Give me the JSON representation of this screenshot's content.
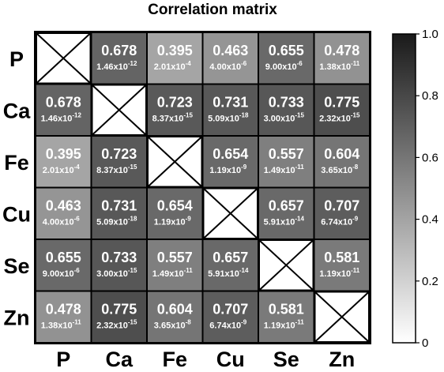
{
  "chart_data": {
    "type": "heatmap",
    "title": "Correlation matrix",
    "rows": [
      "P",
      "Ca",
      "Fe",
      "Cu",
      "Se",
      "Zn"
    ],
    "columns": [
      "P",
      "Ca",
      "Fe",
      "Cu",
      "Se",
      "Zn"
    ],
    "values": [
      [
        null,
        0.678,
        0.395,
        0.463,
        0.655,
        0.478
      ],
      [
        0.678,
        null,
        0.723,
        0.731,
        0.733,
        0.775
      ],
      [
        0.395,
        0.723,
        null,
        0.654,
        0.557,
        0.604
      ],
      [
        0.463,
        0.731,
        0.654,
        null,
        0.657,
        0.707
      ],
      [
        0.655,
        0.733,
        0.557,
        0.657,
        null,
        0.581
      ],
      [
        0.478,
        0.775,
        0.604,
        0.707,
        0.581,
        null
      ]
    ],
    "value_labels": [
      [
        null,
        "0.678",
        "0.395",
        "0.463",
        "0.655",
        "0.478"
      ],
      [
        "0.678",
        null,
        "0.723",
        "0.731",
        "0.733",
        "0.775"
      ],
      [
        "0.395",
        "0.723",
        null,
        "0.654",
        "0.557",
        "0.604"
      ],
      [
        "0.463",
        "0.731",
        "0.654",
        null,
        "0.657",
        "0.707"
      ],
      [
        "0.655",
        "0.733",
        "0.557",
        "0.657",
        null,
        "0.581"
      ],
      [
        "0.478",
        "0.775",
        "0.604",
        "0.707",
        "0.581",
        null
      ]
    ],
    "p_values": [
      [
        null,
        [
          "1.46x10",
          "-12"
        ],
        [
          "2.01x10",
          "-4"
        ],
        [
          "4.00x10",
          "-6"
        ],
        [
          "9.00x10",
          "-6"
        ],
        [
          "1.38x10",
          "-11"
        ]
      ],
      [
        [
          "1.46x10",
          "-12"
        ],
        null,
        [
          "8.37x10",
          "-15"
        ],
        [
          "5.09x10",
          "-18"
        ],
        [
          "3.00x10",
          "-15"
        ],
        [
          "2.32x10",
          "-15"
        ]
      ],
      [
        [
          "2.01x10",
          "-4"
        ],
        [
          "8.37x10",
          "-15"
        ],
        null,
        [
          "1.19x10",
          "-9"
        ],
        [
          "1.49x10",
          "-11"
        ],
        [
          "3.65x10",
          "-8"
        ]
      ],
      [
        [
          "4.00x10",
          "-6"
        ],
        [
          "5.09x10",
          "-18"
        ],
        [
          "1.19x10",
          "-9"
        ],
        null,
        [
          "5.91x10",
          "-14"
        ],
        [
          "6.74x10",
          "-9"
        ]
      ],
      [
        [
          "9.00x10",
          "-6"
        ],
        [
          "3.00x10",
          "-15"
        ],
        [
          "1.49x10",
          "-11"
        ],
        [
          "5.91x10",
          "-14"
        ],
        null,
        [
          "1.19x10",
          "-11"
        ]
      ],
      [
        [
          "1.38x10",
          "-11"
        ],
        [
          "2.32x10",
          "-15"
        ],
        [
          "3.65x10",
          "-8"
        ],
        [
          "6.74x10",
          "-9"
        ],
        [
          "1.19x10",
          "-11"
        ],
        null
      ]
    ],
    "colorbar": {
      "range": [
        0,
        1.0
      ],
      "ticks": [
        0,
        0.2,
        0.4,
        0.6,
        0.8,
        1.0
      ],
      "tick_labels": [
        "0",
        "0.2",
        "0.4",
        "0.6",
        "0.8",
        "1.0"
      ],
      "low_color": "#ffffff",
      "high_color": "#1a1a1a"
    },
    "diagonal": "crossed-out"
  }
}
